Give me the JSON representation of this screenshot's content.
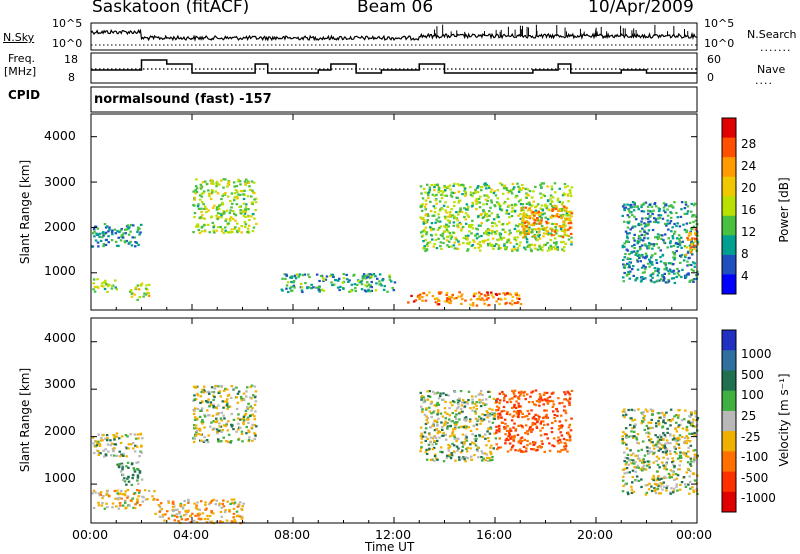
{
  "header": {
    "station": "Saskatoon (fitACF)",
    "beam": "Beam 06",
    "date": "10/Apr/2009"
  },
  "top_panel": {
    "nsky_label": "N.Sky",
    "nsky_ticks": [
      "10^5",
      "10^0"
    ],
    "nsearch_label": "N.Search",
    "nsearch_ticks": [
      "10^5",
      "10^0"
    ],
    "freq_label_1": "Freq.",
    "freq_label_2": "[MHz]",
    "freq_ticks": [
      "18",
      "8"
    ],
    "nave_label": "Nave",
    "nave_ticks": [
      "60",
      "0"
    ],
    "cpid_label": "CPID",
    "cpid_text": "normalsound (fast) -157"
  },
  "x_axis": {
    "tick_labels": [
      "00:00",
      "04:00",
      "08:00",
      "12:00",
      "16:00",
      "20:00",
      "00:00"
    ],
    "label": "Time UT"
  },
  "power_panel": {
    "ylabel": "Slant Range [km]",
    "ytick_labels": [
      "1000",
      "2000",
      "3000",
      "4000"
    ],
    "colorbar_label": "Power [dB]",
    "colorbar_ticks": [
      "28",
      "24",
      "20",
      "16",
      "12",
      "8",
      "4"
    ],
    "colorbar_colors": [
      "#e00000",
      "#ff5000",
      "#ff9a00",
      "#f0c800",
      "#b8e000",
      "#48c040",
      "#00a090",
      "#2050c0",
      "#0000ff"
    ]
  },
  "velocity_panel": {
    "ylabel": "Slant Range [km]",
    "ytick_labels": [
      "1000",
      "2000",
      "3000",
      "4000"
    ],
    "colorbar_label": "Velocity [m s⁻¹]",
    "colorbar_ticks": [
      "1000",
      "500",
      "100",
      "25",
      "-25",
      "-100",
      "-500",
      "-1000"
    ],
    "colorbar_colors": [
      "#2030c0",
      "#3070a0",
      "#207050",
      "#40b040",
      "#b8b8b8",
      "#f0b000",
      "#ff7000",
      "#ff3000",
      "#e00000"
    ]
  },
  "chart_data": [
    {
      "type": "heatmap",
      "title": "Power [dB]",
      "xlabel": "Time UT",
      "ylabel": "Slant Range [km]",
      "xlim": [
        "00:00",
        "24:00"
      ],
      "ylim": [
        180,
        4500
      ],
      "colorbar_range": [
        0,
        30
      ],
      "echo_regions": [
        {
          "t_start": 0.0,
          "t_end": 2.0,
          "range_start": 1600,
          "range_end": 2100,
          "power": 8
        },
        {
          "t_start": 0.0,
          "t_end": 1.0,
          "range_start": 600,
          "range_end": 900,
          "power": 14
        },
        {
          "t_start": 1.5,
          "t_end": 2.3,
          "range_start": 400,
          "range_end": 800,
          "power": 16
        },
        {
          "t_start": 4.0,
          "t_end": 6.5,
          "range_start": 1900,
          "range_end": 3100,
          "power": 14
        },
        {
          "t_start": 7.5,
          "t_end": 12.0,
          "range_start": 600,
          "range_end": 1000,
          "power": 9
        },
        {
          "t_start": 12.5,
          "t_end": 17.0,
          "range_start": 300,
          "range_end": 600,
          "power": 24
        },
        {
          "t_start": 13.0,
          "t_end": 19.0,
          "range_start": 1500,
          "range_end": 3000,
          "power": 13
        },
        {
          "t_start": 17.0,
          "t_end": 19.0,
          "range_start": 1800,
          "range_end": 2500,
          "power": 22
        },
        {
          "t_start": 21.0,
          "t_end": 24.0,
          "range_start": 800,
          "range_end": 2600,
          "power": 8
        },
        {
          "t_start": 23.5,
          "t_end": 24.0,
          "range_start": 1400,
          "range_end": 2000,
          "power": 22
        }
      ]
    },
    {
      "type": "heatmap",
      "title": "Velocity [m s-1]",
      "xlabel": "Time UT",
      "ylabel": "Slant Range [km]",
      "xlim": [
        "00:00",
        "24:00"
      ],
      "ylim": [
        180,
        4500
      ],
      "colorbar_range": [
        -1000,
        1000
      ],
      "echo_regions": [
        {
          "t_start": 0.0,
          "t_end": 2.0,
          "range_start": 1600,
          "range_end": 2100,
          "velocity": 0
        },
        {
          "t_start": 1.0,
          "t_end": 2.0,
          "range_start": 1000,
          "range_end": 1500,
          "velocity": 60
        },
        {
          "t_start": 0.0,
          "t_end": 2.5,
          "range_start": 500,
          "range_end": 900,
          "velocity": -60
        },
        {
          "t_start": 2.5,
          "t_end": 6.0,
          "range_start": 200,
          "range_end": 700,
          "velocity": -70
        },
        {
          "t_start": 4.0,
          "t_end": 6.5,
          "range_start": 1900,
          "range_end": 3100,
          "velocity": 0
        },
        {
          "t_start": 13.0,
          "t_end": 16.0,
          "range_start": 1500,
          "range_end": 3000,
          "velocity": 0
        },
        {
          "t_start": 16.0,
          "t_end": 19.0,
          "range_start": 1700,
          "range_end": 3000,
          "velocity": -400
        },
        {
          "t_start": 21.0,
          "t_end": 24.0,
          "range_start": 800,
          "range_end": 2600,
          "velocity": 15
        }
      ]
    }
  ]
}
